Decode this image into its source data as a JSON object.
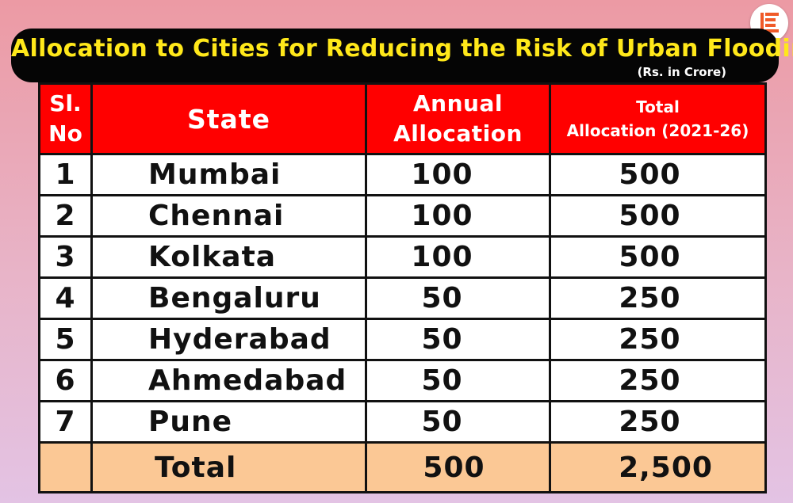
{
  "brand": {
    "logo_icon": "brand-logo-icon",
    "logo_color": "#f05a28"
  },
  "title": {
    "text": "Allocation to Cities for Reducing the Risk of Urban Flooding",
    "unit": "(Rs. in Crore)",
    "text_color": "#ffe81a",
    "banner_color": "#050505"
  },
  "table": {
    "header_color": "#ff0000",
    "total_row_color": "#fbc895",
    "headers": {
      "sl_no_line1": "Sl.",
      "sl_no_line2": "No",
      "state": "State",
      "annual_line1": "Annual",
      "annual_line2": "Allocation",
      "total_line1": "Total",
      "total_line2": "Allocation (2021-26)"
    },
    "rows": [
      {
        "sl": "1",
        "city": "Mumbai",
        "annual": "100",
        "total": "500"
      },
      {
        "sl": "2",
        "city": "Chennai",
        "annual": "100",
        "total": "500"
      },
      {
        "sl": "3",
        "city": "Kolkata",
        "annual": "100",
        "total": "500"
      },
      {
        "sl": "4",
        "city": "Bengaluru",
        "annual": "50",
        "total": "250"
      },
      {
        "sl": "5",
        "city": "Hyderabad",
        "annual": "50",
        "total": "250"
      },
      {
        "sl": "6",
        "city": "Ahmedabad",
        "annual": "50",
        "total": "250"
      },
      {
        "sl": "7",
        "city": "Pune",
        "annual": "50",
        "total": "250"
      }
    ],
    "total": {
      "sl": "",
      "label": "Total",
      "annual": "500",
      "total": "2,500"
    }
  }
}
